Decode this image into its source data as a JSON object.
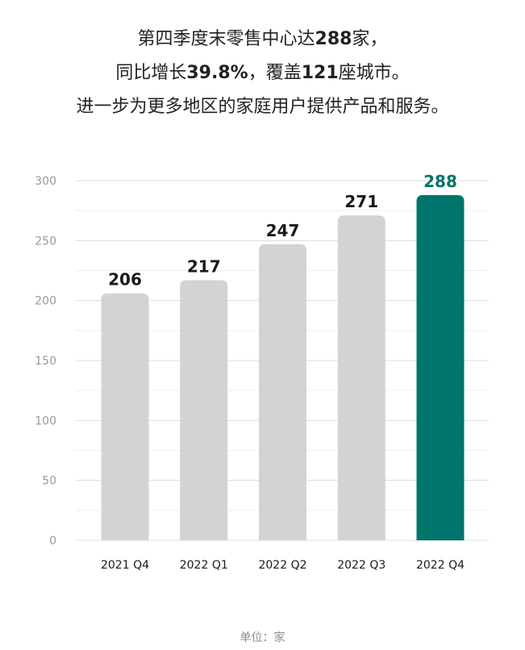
{
  "headline": {
    "line1": {
      "pre": "第四季度末零售中心达",
      "num": "288",
      "post": "家，"
    },
    "line2": {
      "pre": "同比增长",
      "num1": "39.8%",
      "mid": "，覆盖",
      "num2": "121",
      "post": "座城市。"
    },
    "line3": "进一步为更多地区的家庭用户提供产品和服务。"
  },
  "unit_label": "单位：家",
  "colors": {
    "bar": "#d3d3d3",
    "highlight": "#00756b",
    "label": "#1a1a1a",
    "axis_text": "#9a9a9a",
    "grid": "#e6e6e6"
  },
  "chart_data": {
    "type": "bar",
    "categories": [
      "2021 Q4",
      "2022 Q1",
      "2022 Q2",
      "2022 Q3",
      "2022 Q4"
    ],
    "values": [
      206,
      217,
      247,
      271,
      288
    ],
    "data_labels": [
      "206",
      "217",
      "247",
      "271",
      "288"
    ],
    "highlight_index": 4,
    "ylim": [
      0,
      300
    ],
    "yticks": [
      0,
      50,
      100,
      150,
      200,
      250,
      300
    ],
    "ytick_labels": [
      "0",
      "50",
      "100",
      "150",
      "200",
      "250",
      "300"
    ],
    "grid": true,
    "title": "",
    "xlabel": "",
    "ylabel": ""
  }
}
